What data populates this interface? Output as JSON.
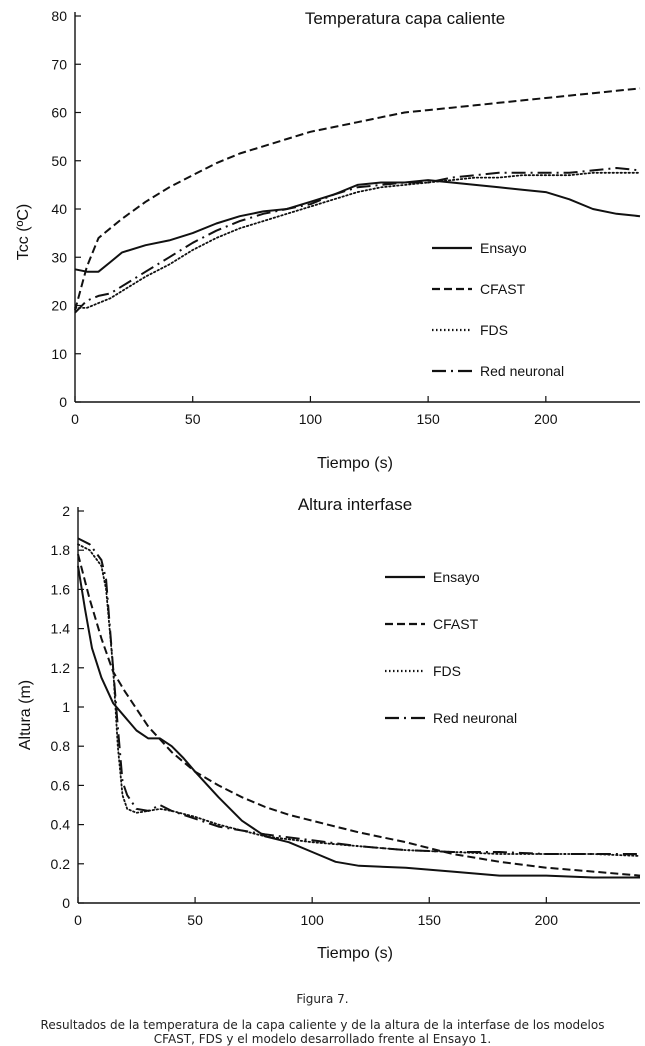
{
  "figure": {
    "label": "Figura 7.",
    "caption": "Resultados de la temperatura de la capa caliente y de la altura de la interfase de los modelos CFAST, FDS y el modelo desarrollado frente al Ensayo 1."
  },
  "chart_data": [
    {
      "type": "line",
      "title": "Temperatura capa caliente",
      "xlabel": "Tiempo (s)",
      "ylabel": "Tcc (ºC)",
      "xlim": [
        0,
        240
      ],
      "ylim": [
        0,
        80
      ],
      "xticks": [
        0,
        50,
        100,
        150,
        200
      ],
      "yticks": [
        0,
        10,
        20,
        30,
        40,
        50,
        60,
        70,
        80
      ],
      "legend_position": "right",
      "series": [
        {
          "name": "Ensayo",
          "style": "solid",
          "x": [
            0,
            5,
            10,
            15,
            20,
            30,
            40,
            50,
            60,
            70,
            80,
            90,
            100,
            110,
            120,
            130,
            140,
            150,
            160,
            170,
            180,
            190,
            200,
            210,
            220,
            230,
            240
          ],
          "y": [
            27.5,
            27,
            27,
            29,
            31,
            32.5,
            33.5,
            35,
            37,
            38.5,
            39.5,
            40,
            41.5,
            43,
            45,
            45.5,
            45.5,
            46,
            45.5,
            45,
            44.5,
            44,
            43.5,
            42,
            40,
            39,
            38.5
          ]
        },
        {
          "name": "CFAST",
          "style": "dashed",
          "x": [
            0,
            5,
            10,
            15,
            20,
            30,
            40,
            50,
            60,
            70,
            80,
            90,
            100,
            110,
            120,
            130,
            140,
            150,
            160,
            170,
            180,
            190,
            200,
            210,
            220,
            230,
            240
          ],
          "y": [
            19,
            28,
            34,
            36,
            38,
            41.5,
            44.5,
            47,
            49.5,
            51.5,
            53,
            54.5,
            56,
            57,
            58,
            59,
            60,
            60.5,
            61,
            61.5,
            62,
            62.5,
            63,
            63.5,
            64,
            64.5,
            65
          ]
        },
        {
          "name": "FDS",
          "style": "dotted",
          "x": [
            0,
            5,
            10,
            15,
            20,
            30,
            40,
            50,
            60,
            70,
            80,
            90,
            100,
            110,
            120,
            130,
            140,
            150,
            160,
            170,
            180,
            190,
            200,
            210,
            220,
            230,
            240
          ],
          "y": [
            19.5,
            19.5,
            20.5,
            21.5,
            23,
            26,
            28.5,
            31.5,
            34,
            36,
            37.5,
            39,
            40.5,
            42,
            43.5,
            44.5,
            45,
            45.5,
            46,
            46.5,
            46.5,
            47,
            47,
            47,
            47.5,
            47.5,
            47.5
          ]
        },
        {
          "name": "Red neuronal",
          "style": "dashdot",
          "x": [
            0,
            5,
            10,
            15,
            20,
            30,
            40,
            50,
            60,
            70,
            80,
            90,
            100,
            110,
            120,
            130,
            140,
            150,
            160,
            170,
            180,
            190,
            200,
            210,
            220,
            230,
            240
          ],
          "y": [
            18.5,
            21,
            22,
            22.5,
            24,
            27,
            30,
            33,
            35.5,
            37.5,
            39,
            40,
            41,
            43,
            44.5,
            45,
            45.5,
            45.5,
            46.5,
            47,
            47.5,
            47.5,
            47.5,
            47.5,
            48,
            48.5,
            48
          ]
        }
      ]
    },
    {
      "type": "line",
      "title": "Altura interfase",
      "xlabel": "Tiempo (s)",
      "ylabel": "Altura (m)",
      "xlim": [
        0,
        240
      ],
      "ylim": [
        0,
        2
      ],
      "xticks": [
        0,
        50,
        100,
        150,
        200
      ],
      "yticks": [
        0,
        0.2,
        0.4,
        0.6,
        0.8,
        1,
        1.2,
        1.4,
        1.6,
        1.8,
        2
      ],
      "ytick_labels": [
        "0",
        "0.2",
        "0.4",
        "0.6",
        "0.8",
        "1",
        "1.2",
        "1.4",
        "1.6",
        "1.8",
        "2"
      ],
      "legend_position": "top-right",
      "series": [
        {
          "name": "Ensayo",
          "style": "solid",
          "x": [
            0,
            3,
            6,
            10,
            15,
            20,
            25,
            30,
            35,
            40,
            45,
            50,
            60,
            70,
            80,
            90,
            100,
            110,
            120,
            140,
            160,
            180,
            200,
            220,
            240
          ],
          "y": [
            1.72,
            1.5,
            1.3,
            1.15,
            1.02,
            0.95,
            0.88,
            0.84,
            0.84,
            0.8,
            0.74,
            0.67,
            0.54,
            0.42,
            0.34,
            0.31,
            0.26,
            0.21,
            0.19,
            0.18,
            0.16,
            0.14,
            0.14,
            0.13,
            0.13
          ]
        },
        {
          "name": "CFAST",
          "style": "dashed",
          "x": [
            0,
            5,
            10,
            15,
            20,
            30,
            40,
            50,
            60,
            70,
            80,
            90,
            100,
            110,
            120,
            140,
            160,
            180,
            200,
            220,
            240
          ],
          "y": [
            1.78,
            1.55,
            1.35,
            1.18,
            1.08,
            0.9,
            0.77,
            0.67,
            0.6,
            0.54,
            0.49,
            0.45,
            0.42,
            0.39,
            0.36,
            0.31,
            0.25,
            0.21,
            0.18,
            0.16,
            0.14
          ]
        },
        {
          "name": "FDS",
          "style": "dotted",
          "x": [
            0,
            5,
            10,
            12,
            15,
            17,
            19,
            21,
            25,
            30,
            35,
            40,
            50,
            60,
            80,
            100,
            120,
            140,
            160,
            180,
            200,
            220,
            240
          ],
          "y": [
            1.83,
            1.8,
            1.72,
            1.6,
            1.2,
            0.8,
            0.55,
            0.48,
            0.46,
            0.47,
            0.48,
            0.47,
            0.44,
            0.4,
            0.34,
            0.31,
            0.29,
            0.27,
            0.26,
            0.25,
            0.25,
            0.25,
            0.24
          ]
        },
        {
          "name": "Red neuronal",
          "style": "dashdot",
          "x": [
            0,
            5,
            10,
            12,
            15,
            17,
            19,
            21,
            25,
            30,
            35,
            40,
            50,
            60,
            80,
            100,
            120,
            140,
            160,
            180,
            200,
            220,
            240
          ],
          "y": [
            1.86,
            1.83,
            1.75,
            1.65,
            1.2,
            0.9,
            0.62,
            0.55,
            0.48,
            0.47,
            0.5,
            0.47,
            0.43,
            0.39,
            0.35,
            0.32,
            0.29,
            0.27,
            0.26,
            0.26,
            0.25,
            0.25,
            0.25
          ]
        }
      ]
    }
  ]
}
